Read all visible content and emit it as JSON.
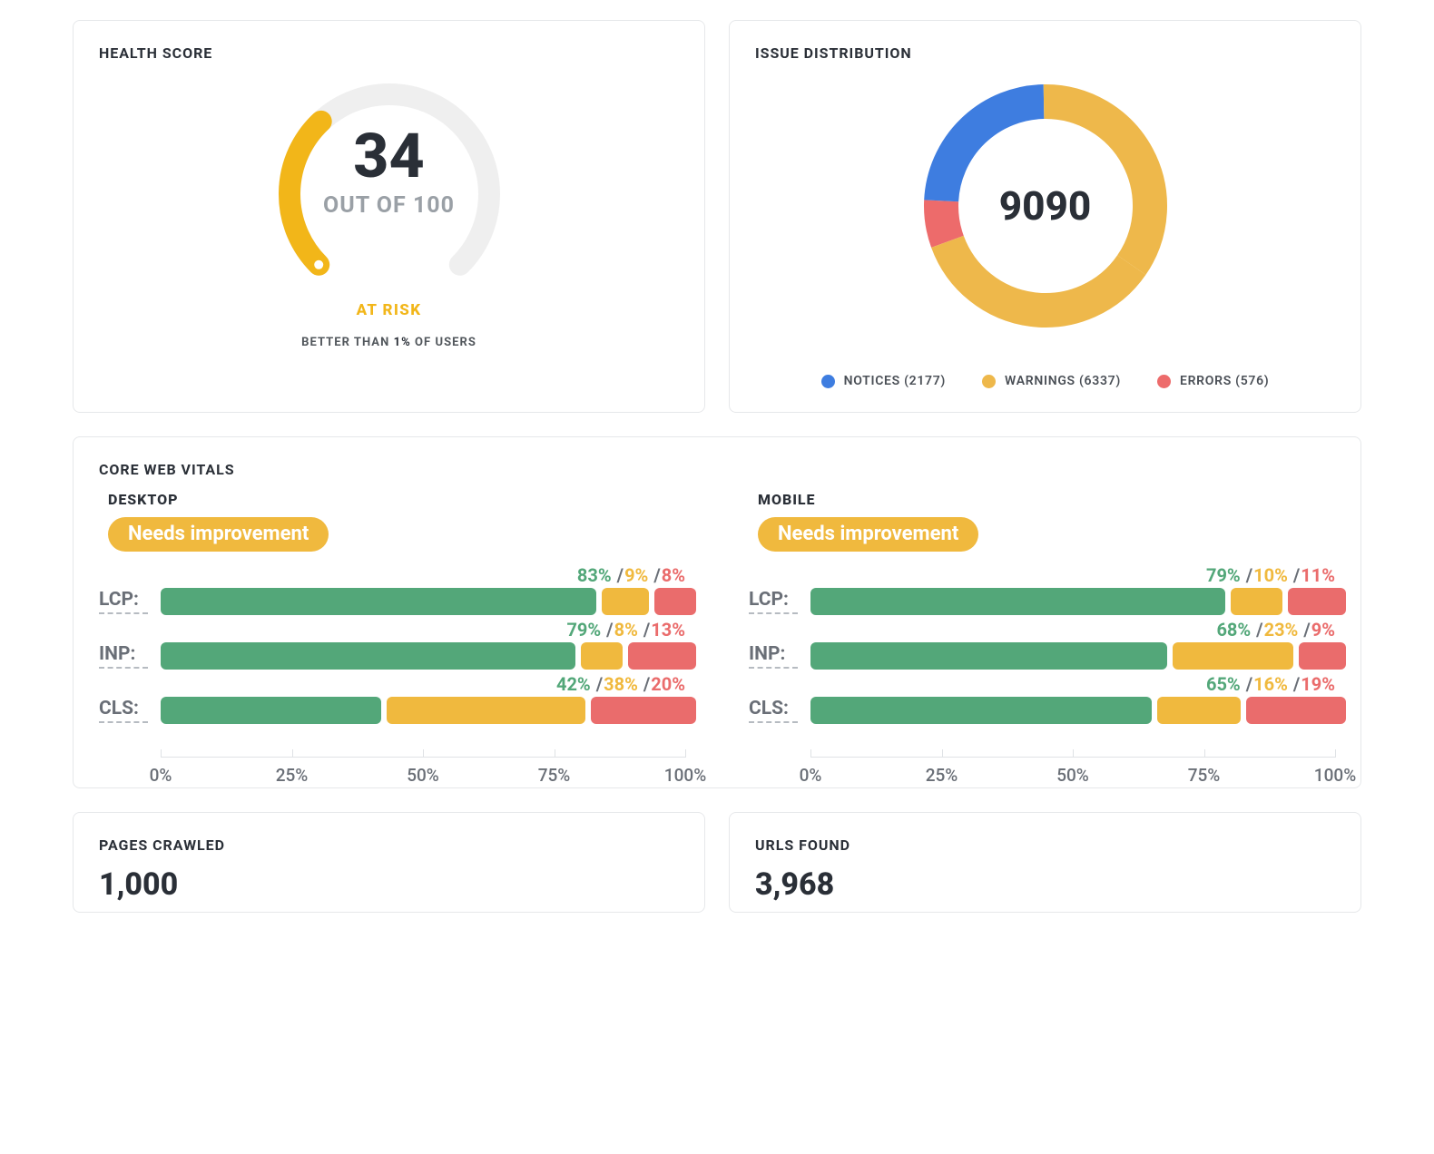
{
  "health_score": {
    "title": "HEALTH SCORE",
    "value": "34",
    "subtitle": "OUT OF 100",
    "status_label": "AT RISK",
    "status_color": "#f2b619",
    "better_prefix": "BETTER THAN ",
    "better_pct": "1%",
    "better_suffix": " OF USERS",
    "gauge": {
      "sweep_deg": 270,
      "value_pct": 34,
      "track_color": "#efefef",
      "fill_color": "#f2b619",
      "stroke_width": 24,
      "radius": 110
    }
  },
  "issue_distribution": {
    "title": "ISSUE DISTRIBUTION",
    "total": "9090",
    "colors": {
      "notices": "#3e7de0",
      "warnings": "#eeb84b",
      "errors": "#ed6b6b"
    },
    "slices": [
      {
        "key": "errors",
        "label": "ERRORS",
        "count": 576,
        "color": "#ed6b6b"
      },
      {
        "key": "notices",
        "label": "NOTICES",
        "count": 2177,
        "color": "#3e7de0"
      },
      {
        "key": "warnings",
        "label": "WARNINGS",
        "count": 6337,
        "color": "#eeb84b"
      }
    ],
    "legend_order": [
      "notices",
      "warnings",
      "errors"
    ],
    "donut": {
      "radius": 115,
      "stroke_width": 38,
      "start_angle_deg": -110
    }
  },
  "core_web_vitals": {
    "title": "CORE WEB VITALS",
    "colors": {
      "good": "#53a779",
      "ok": "#f0b93e",
      "bad": "#ea6c6c"
    },
    "axis": {
      "ticks": [
        0,
        25,
        50,
        75,
        100
      ],
      "labels": [
        "0%",
        "25%",
        "50%",
        "75%",
        "100%"
      ]
    },
    "desktop": {
      "subtitle": "DESKTOP",
      "pill_label": "Needs improvement",
      "pill_color": "#f0b93e",
      "metrics": [
        {
          "name": "LCP",
          "good": 83,
          "ok": 9,
          "bad": 8
        },
        {
          "name": "INP",
          "good": 79,
          "ok": 8,
          "bad": 13
        },
        {
          "name": "CLS",
          "good": 42,
          "ok": 38,
          "bad": 20
        }
      ]
    },
    "mobile": {
      "subtitle": "MOBILE",
      "pill_label": "Needs improvement",
      "pill_color": "#f0b93e",
      "metrics": [
        {
          "name": "LCP",
          "good": 79,
          "ok": 10,
          "bad": 11
        },
        {
          "name": "INP",
          "good": 68,
          "ok": 23,
          "bad": 9
        },
        {
          "name": "CLS",
          "good": 65,
          "ok": 16,
          "bad": 19
        }
      ]
    }
  },
  "stats": {
    "pages_crawled": {
      "title": "PAGES CRAWLED",
      "value": "1,000"
    },
    "urls_found": {
      "title": "URLS FOUND",
      "value": "3,968"
    }
  }
}
